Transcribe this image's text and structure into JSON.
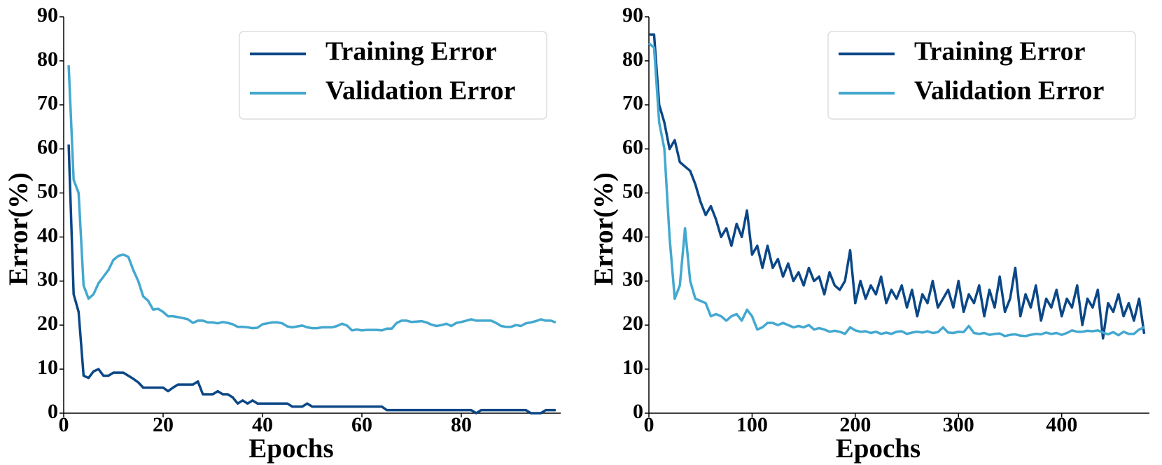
{
  "chart_data": [
    {
      "type": "line",
      "xlabel": "Epochs",
      "ylabel": "Error(%)",
      "legend": "upper right",
      "grid": false,
      "xlim": [
        0,
        100
      ],
      "xticks": [
        0,
        20,
        40,
        60,
        80
      ],
      "ylim": [
        0,
        90
      ],
      "yticks": [
        0,
        10,
        20,
        30,
        40,
        50,
        60,
        70,
        80,
        90
      ],
      "x": [
        1,
        2,
        3,
        4,
        5,
        6,
        7,
        8,
        9,
        10,
        11,
        12,
        13,
        14,
        15,
        16,
        17,
        18,
        19,
        20,
        21,
        22,
        23,
        24,
        25,
        26,
        27,
        28,
        29,
        30,
        31,
        32,
        33,
        34,
        35,
        36,
        37,
        38,
        39,
        40,
        41,
        42,
        43,
        44,
        45,
        46,
        47,
        48,
        49,
        50,
        51,
        52,
        53,
        54,
        55,
        56,
        57,
        58,
        59,
        60,
        61,
        62,
        63,
        64,
        65,
        66,
        67,
        68,
        69,
        70,
        71,
        72,
        73,
        74,
        75,
        76,
        77,
        78,
        79,
        80,
        81,
        82,
        83,
        84,
        85,
        86,
        87,
        88,
        89,
        90,
        91,
        92,
        93,
        94,
        95,
        96,
        97,
        98,
        99
      ],
      "series": [
        {
          "name": "Training Error",
          "color": "#0b4786",
          "values": [
            61,
            27,
            23,
            8.5,
            8,
            9.5,
            10,
            8.5,
            8.5,
            9.2,
            9.2,
            9.2,
            8.5,
            7.8,
            7,
            5.8,
            5.8,
            5.8,
            5.8,
            5.8,
            5,
            5.8,
            6.5,
            6.5,
            6.5,
            6.5,
            7.2,
            4.3,
            4.3,
            4.3,
            5,
            4.3,
            4.3,
            3.6,
            2.2,
            2.9,
            2.2,
            2.9,
            2.2,
            2.2,
            2.2,
            2.2,
            2.2,
            2.2,
            2.2,
            1.5,
            1.5,
            1.5,
            2.2,
            1.5,
            1.5,
            1.5,
            1.5,
            1.5,
            1.5,
            1.5,
            1.5,
            1.5,
            1.5,
            1.5,
            1.5,
            1.5,
            1.5,
            1.5,
            0.7,
            0.7,
            0.7,
            0.7,
            0.7,
            0.7,
            0.7,
            0.7,
            0.7,
            0.7,
            0.7,
            0.7,
            0.7,
            0.7,
            0.7,
            0.7,
            0.7,
            0.7,
            0,
            0.7,
            0.7,
            0.7,
            0.7,
            0.7,
            0.7,
            0.7,
            0.7,
            0.7,
            0.7,
            0,
            0,
            0,
            0.7,
            0.7,
            0.7
          ]
        },
        {
          "name": "Validation Error",
          "color": "#43a8cf",
          "values": [
            79,
            53,
            50,
            29,
            26,
            27,
            29.5,
            31,
            32.5,
            34.8,
            35.7,
            36,
            35.5,
            32.5,
            30,
            26.5,
            25.5,
            23.5,
            23.7,
            23,
            22,
            22,
            21.8,
            21.6,
            21.3,
            20.5,
            21,
            21,
            20.6,
            20.6,
            20.4,
            20.7,
            20.5,
            20.2,
            19.6,
            19.6,
            19.5,
            19.3,
            19.4,
            20.2,
            20.4,
            20.6,
            20.6,
            20.4,
            19.7,
            19.5,
            19.7,
            19.9,
            19.5,
            19.3,
            19.3,
            19.5,
            19.5,
            19.5,
            19.8,
            20.3,
            19.9,
            18.8,
            19,
            18.8,
            18.9,
            18.9,
            18.9,
            18.8,
            19.2,
            19.2,
            20.5,
            21,
            21,
            20.7,
            20.8,
            20.9,
            20.6,
            20.1,
            19.8,
            20,
            20.3,
            19.8,
            20.5,
            20.7,
            21,
            21.3,
            21,
            21,
            21,
            21,
            20.5,
            19.8,
            19.6,
            19.6,
            20,
            19.8,
            20.4,
            20.6,
            20.9,
            21.3,
            21,
            21,
            20.6
          ]
        }
      ]
    },
    {
      "type": "line",
      "xlabel": "Epochs",
      "ylabel": "Error(%)",
      "legend": "upper right",
      "grid": false,
      "xlim": [
        0,
        485
      ],
      "xticks": [
        0,
        100,
        200,
        300,
        400
      ],
      "ylim": [
        0,
        90
      ],
      "yticks": [
        0,
        10,
        20,
        30,
        40,
        50,
        60,
        70,
        80,
        90
      ],
      "x": [
        0,
        5,
        10,
        15,
        20,
        25,
        30,
        35,
        40,
        45,
        50,
        55,
        60,
        65,
        70,
        75,
        80,
        85,
        90,
        95,
        100,
        105,
        110,
        115,
        120,
        125,
        130,
        135,
        140,
        145,
        150,
        155,
        160,
        165,
        170,
        175,
        180,
        185,
        190,
        195,
        200,
        205,
        210,
        215,
        220,
        225,
        230,
        235,
        240,
        245,
        250,
        255,
        260,
        265,
        270,
        275,
        280,
        285,
        290,
        295,
        300,
        305,
        310,
        315,
        320,
        325,
        330,
        335,
        340,
        345,
        350,
        355,
        360,
        365,
        370,
        375,
        380,
        385,
        390,
        395,
        400,
        405,
        410,
        415,
        420,
        425,
        430,
        435,
        440,
        445,
        450,
        455,
        460,
        465,
        470,
        475,
        480
      ],
      "series": [
        {
          "name": "Training Error",
          "color": "#0b4786",
          "values": [
            86,
            86,
            70,
            66,
            60,
            62,
            57,
            56,
            55,
            52,
            48,
            45,
            47,
            44,
            40,
            42,
            38,
            43,
            40,
            46,
            36,
            38,
            33,
            38,
            33,
            35,
            31,
            34,
            30,
            32,
            29,
            33,
            30,
            31,
            27,
            32,
            29,
            28,
            30,
            37,
            25,
            30,
            26,
            29,
            27,
            31,
            25,
            28,
            26,
            29,
            24,
            28,
            22,
            27,
            25,
            30,
            24,
            26,
            28,
            24,
            30,
            23,
            27,
            25,
            29,
            22,
            28,
            24,
            31,
            23,
            26,
            33,
            22,
            27,
            24,
            29,
            21,
            26,
            24,
            28,
            22,
            26,
            24,
            29,
            20,
            26,
            24,
            28,
            17,
            25,
            23,
            27,
            22,
            25,
            21,
            26,
            18
          ]
        },
        {
          "name": "Validation Error",
          "color": "#43a8cf",
          "values": [
            84,
            83,
            66,
            60,
            40,
            26,
            29,
            42,
            30,
            26,
            25.5,
            25,
            22,
            22.5,
            22,
            21,
            22,
            22.5,
            21,
            23.5,
            22,
            19,
            19.5,
            20.5,
            20.5,
            20,
            20.5,
            20,
            19.5,
            19.8,
            19.5,
            20,
            19,
            19.3,
            19,
            18.5,
            18.7,
            18.5,
            18,
            19.5,
            18.8,
            18.5,
            18.6,
            18.2,
            18.5,
            18,
            18.3,
            18,
            18.5,
            18.6,
            18,
            18.3,
            18.5,
            18.3,
            18.6,
            18.2,
            18.4,
            19.5,
            18.3,
            18.2,
            18.5,
            18.4,
            19.8,
            18.2,
            18,
            18.2,
            17.8,
            18,
            18.1,
            17.5,
            17.8,
            17.9,
            17.6,
            17.5,
            17.8,
            18,
            17.9,
            18.3,
            18,
            18.2,
            17.8,
            18.2,
            18.8,
            18.5,
            18.5,
            18.7,
            18.6,
            18.8,
            18.3,
            17.9,
            18.4,
            17.7,
            18.5,
            18,
            18,
            19,
            19.5
          ]
        }
      ]
    }
  ]
}
